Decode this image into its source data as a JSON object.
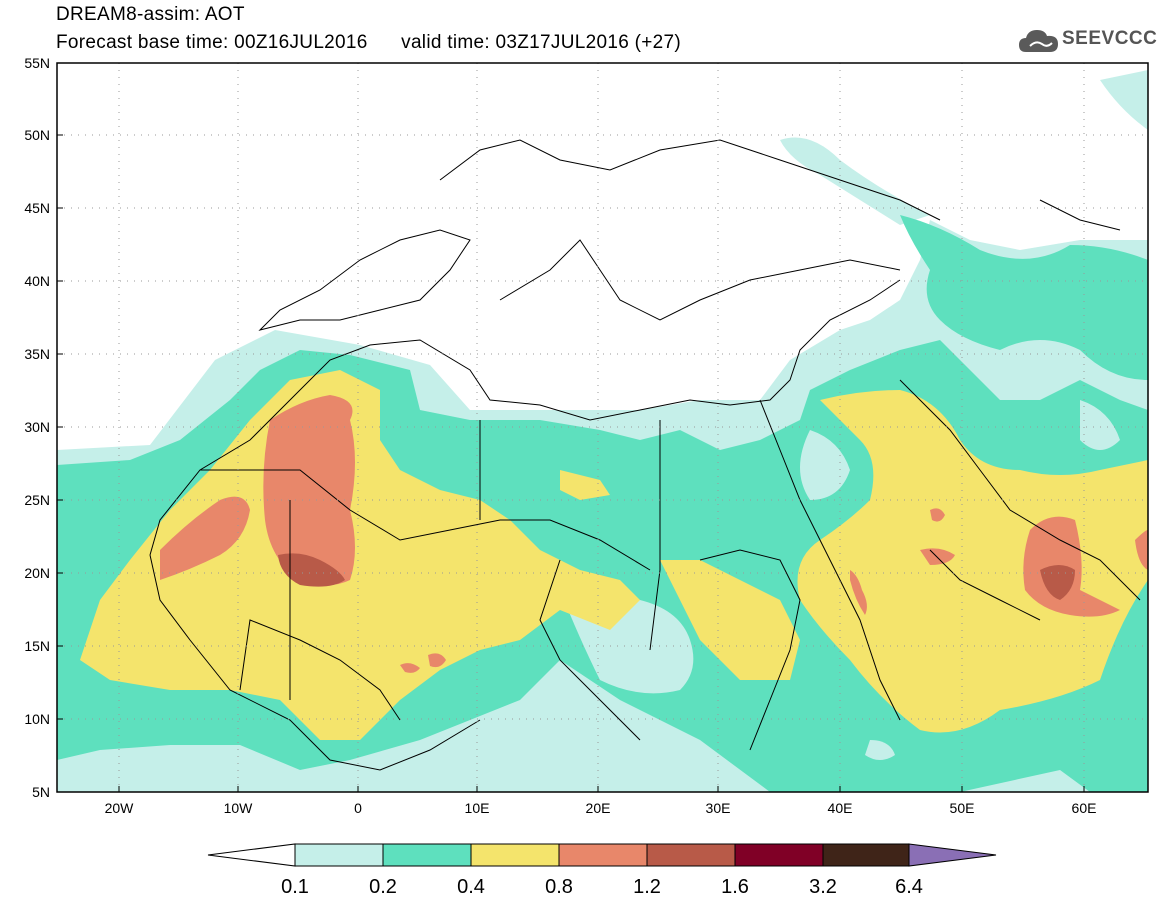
{
  "header": {
    "title": "DREAM8-assim: AOT",
    "base_time": "Forecast base time: 00Z16JUL2016",
    "valid_time": "valid time: 03Z17JUL2016 (+27)"
  },
  "logo": {
    "text": "SEEVCCC",
    "icon": "cloud-icon"
  },
  "map": {
    "lat_range": [
      5,
      55
    ],
    "lon_range": [
      -25,
      65
    ],
    "lat_ticks": [
      "55N",
      "50N",
      "45N",
      "40N",
      "35N",
      "30N",
      "25N",
      "20N",
      "15N",
      "10N",
      "5N"
    ],
    "lon_ticks": [
      "20W",
      "10W",
      "0",
      "10E",
      "20E",
      "30E",
      "40E",
      "50E",
      "60E"
    ]
  },
  "legend": {
    "labels": [
      "0.1",
      "0.2",
      "0.4",
      "0.8",
      "1.2",
      "1.6",
      "3.2",
      "6.4"
    ],
    "colors": [
      "#ffffff",
      "#c5efe9",
      "#5ee0be",
      "#f4e46c",
      "#e8876a",
      "#b85a48",
      "#800026",
      "#3f2418",
      "#8a6fb5"
    ]
  }
}
